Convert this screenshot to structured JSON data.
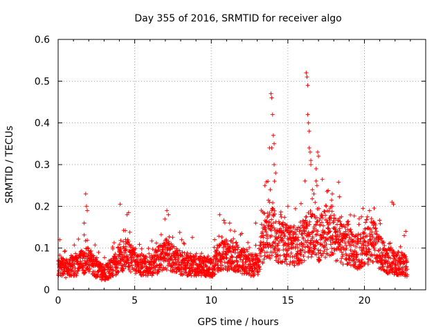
{
  "chart_data": {
    "type": "scatter",
    "title": "Day 355 of 2016, SRMTID for receiver algo",
    "xlabel": "GPS time / hours",
    "ylabel": "SRMTID / TECUs",
    "xlim": [
      0,
      24
    ],
    "ylim": [
      0,
      0.6
    ],
    "xticks": [
      0,
      5,
      10,
      15,
      20
    ],
    "yticks": [
      0,
      0.1,
      0.2,
      0.3,
      0.4,
      0.5,
      0.6
    ],
    "xtick_labels": [
      "0",
      "5",
      "10",
      "15",
      "20"
    ],
    "ytick_labels": [
      "0",
      "0.1",
      "0.2",
      "0.3",
      "0.4",
      "0.5",
      "0.6"
    ],
    "grid": true,
    "marker": "+",
    "marker_color": "#ff0000",
    "n_points_approx": 2500,
    "series": [
      {
        "name": "algo",
        "x_range": [
          0,
          22.8
        ],
        "baseline_profile": [
          [
            0,
            0.055
          ],
          [
            0.5,
            0.05
          ],
          [
            1,
            0.06
          ],
          [
            1.5,
            0.065
          ],
          [
            2,
            0.07
          ],
          [
            2.5,
            0.05
          ],
          [
            3,
            0.04
          ],
          [
            3.5,
            0.05
          ],
          [
            4,
            0.075
          ],
          [
            4.5,
            0.085
          ],
          [
            5,
            0.07
          ],
          [
            5.5,
            0.06
          ],
          [
            6,
            0.055
          ],
          [
            6.5,
            0.07
          ],
          [
            7,
            0.085
          ],
          [
            7.5,
            0.075
          ],
          [
            8,
            0.065
          ],
          [
            8.5,
            0.06
          ],
          [
            9,
            0.06
          ],
          [
            9.5,
            0.055
          ],
          [
            10,
            0.05
          ],
          [
            10.5,
            0.08
          ],
          [
            11,
            0.085
          ],
          [
            11.5,
            0.08
          ],
          [
            12,
            0.07
          ],
          [
            12.5,
            0.06
          ],
          [
            13,
            0.06
          ],
          [
            13.5,
            0.12
          ],
          [
            14,
            0.14
          ],
          [
            14.5,
            0.11
          ],
          [
            15,
            0.11
          ],
          [
            15.5,
            0.1
          ],
          [
            16,
            0.12
          ],
          [
            16.5,
            0.14
          ],
          [
            17,
            0.12
          ],
          [
            17.5,
            0.14
          ],
          [
            18,
            0.13
          ],
          [
            18.5,
            0.11
          ],
          [
            19,
            0.1
          ],
          [
            19.5,
            0.09
          ],
          [
            20,
            0.1
          ],
          [
            20.5,
            0.12
          ],
          [
            21,
            0.09
          ],
          [
            21.5,
            0.07
          ],
          [
            22,
            0.065
          ],
          [
            22.5,
            0.06
          ],
          [
            22.8,
            0.055
          ]
        ],
        "highlights": [
          [
            0.1,
            0.12
          ],
          [
            1.7,
            0.16
          ],
          [
            1.8,
            0.23
          ],
          [
            1.85,
            0.2
          ],
          [
            1.9,
            0.19
          ],
          [
            4.05,
            0.205
          ],
          [
            4.5,
            0.18
          ],
          [
            4.6,
            0.185
          ],
          [
            7.1,
            0.19
          ],
          [
            7.2,
            0.18
          ],
          [
            10.55,
            0.18
          ],
          [
            11.2,
            0.16
          ],
          [
            12.9,
            0.16
          ],
          [
            13.5,
            0.25
          ],
          [
            13.7,
            0.26
          ],
          [
            13.8,
            0.21
          ],
          [
            13.85,
            0.24
          ],
          [
            13.9,
            0.47
          ],
          [
            13.95,
            0.46
          ],
          [
            14.0,
            0.42
          ],
          [
            14.05,
            0.37
          ],
          [
            14.1,
            0.35
          ],
          [
            14.1,
            0.3
          ],
          [
            14.2,
            0.28
          ],
          [
            13.95,
            0.34
          ],
          [
            13.8,
            0.34
          ],
          [
            15.0,
            0.2
          ],
          [
            16.2,
            0.52
          ],
          [
            16.25,
            0.51
          ],
          [
            16.3,
            0.49
          ],
          [
            16.3,
            0.42
          ],
          [
            16.35,
            0.4
          ],
          [
            16.4,
            0.38
          ],
          [
            16.4,
            0.34
          ],
          [
            16.45,
            0.33
          ],
          [
            16.5,
            0.3
          ],
          [
            16.5,
            0.31
          ],
          [
            16.6,
            0.24
          ],
          [
            16.7,
            0.23
          ],
          [
            16.85,
            0.29
          ],
          [
            16.95,
            0.33
          ],
          [
            17.0,
            0.32
          ],
          [
            16.9,
            0.25
          ],
          [
            17.9,
            0.23
          ],
          [
            18.5,
            0.175
          ],
          [
            19.8,
            0.175
          ],
          [
            19.9,
            0.195
          ],
          [
            20.2,
            0.175
          ],
          [
            21.8,
            0.21
          ],
          [
            21.9,
            0.205
          ],
          [
            22.6,
            0.13
          ],
          [
            22.7,
            0.14
          ]
        ]
      }
    ]
  }
}
